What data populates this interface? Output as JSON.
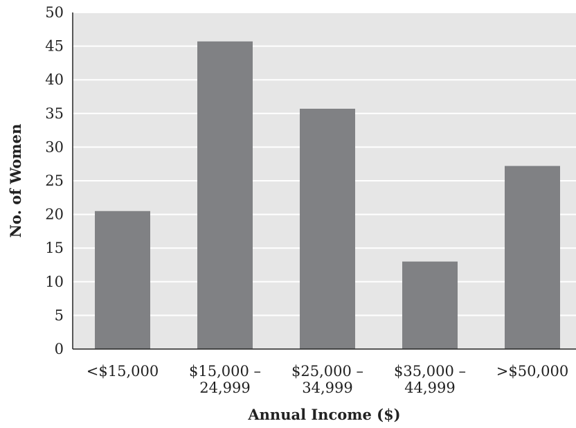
{
  "chart_data": {
    "type": "bar",
    "title": "",
    "xlabel": "Annual Income ($)",
    "ylabel": "No. of Women",
    "categories": [
      [
        "<$15,000"
      ],
      [
        "$15,000 –",
        "24,999"
      ],
      [
        "$25,000 –",
        "34,999"
      ],
      [
        "$35,000 –",
        "44,999"
      ],
      [
        ">$50,000"
      ]
    ],
    "values": [
      20.5,
      45.7,
      35.7,
      13,
      27.2
    ],
    "ylim": [
      0,
      50
    ],
    "yticks": [
      "0",
      "5",
      "10",
      "15",
      "20",
      "25",
      "30",
      "35",
      "40",
      "45",
      "50"
    ],
    "grid": true,
    "legend": "none",
    "colors": {
      "bar": "#808184",
      "plot_background": "#e6e6e6",
      "gridline": "#ffffff",
      "axis": "#222222"
    }
  }
}
